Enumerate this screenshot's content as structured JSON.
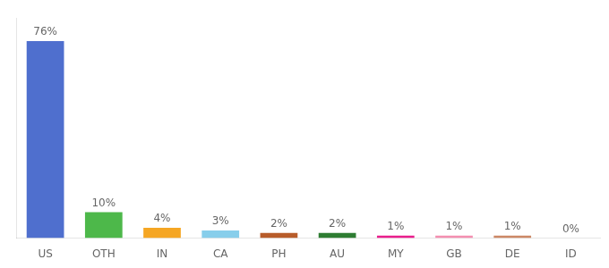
{
  "chart_data": {
    "type": "bar",
    "categories": [
      "US",
      "OTH",
      "IN",
      "CA",
      "PH",
      "AU",
      "MY",
      "GB",
      "DE",
      "ID"
    ],
    "values": [
      76,
      10,
      4,
      3,
      2,
      2,
      1,
      1,
      1,
      0
    ],
    "value_labels": [
      "76%",
      "10%",
      "4%",
      "3%",
      "2%",
      "2%",
      "1%",
      "1%",
      "1%",
      "0%"
    ],
    "data_labels": true,
    "colors": [
      "#4f6fce",
      "#4db84a",
      "#f5a623",
      "#87ceeb",
      "#b85c2a",
      "#2e7d32",
      "#e91e8c",
      "#f48fb1",
      "#cc8866",
      "#bbbbbb"
    ],
    "ylim": [
      0,
      85
    ],
    "grid": false,
    "tick_labels": "x"
  }
}
